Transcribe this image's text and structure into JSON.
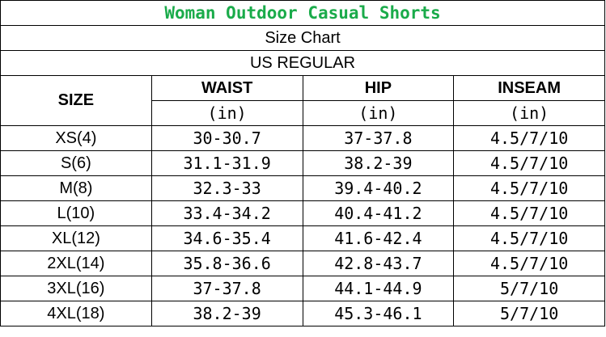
{
  "title": "Woman Outdoor Casual Shorts",
  "subtitle": "Size Chart",
  "region": "US REGULAR",
  "colors": {
    "title": "#1aab4a"
  },
  "headers": {
    "size": "SIZE",
    "waist": "WAIST",
    "hip": "HIP",
    "inseam": "INSEAM",
    "unit": "(in)"
  },
  "rows": [
    {
      "size": "XS(4)",
      "waist": "30-30.7",
      "hip": "37-37.8",
      "inseam": "4.5/7/10"
    },
    {
      "size": "S(6)",
      "waist": "31.1-31.9",
      "hip": "38.2-39",
      "inseam": "4.5/7/10"
    },
    {
      "size": "M(8)",
      "waist": "32.3-33",
      "hip": "39.4-40.2",
      "inseam": "4.5/7/10"
    },
    {
      "size": "L(10)",
      "waist": "33.4-34.2",
      "hip": "40.4-41.2",
      "inseam": "4.5/7/10"
    },
    {
      "size": "XL(12)",
      "waist": "34.6-35.4",
      "hip": "41.6-42.4",
      "inseam": "4.5/7/10"
    },
    {
      "size": "2XL(14)",
      "waist": "35.8-36.6",
      "hip": "42.8-43.7",
      "inseam": "4.5/7/10"
    },
    {
      "size": "3XL(16)",
      "waist": "37-37.8",
      "hip": "44.1-44.9",
      "inseam": "5/7/10"
    },
    {
      "size": "4XL(18)",
      "waist": "38.2-39",
      "hip": "45.3-46.1",
      "inseam": "5/7/10"
    }
  ]
}
